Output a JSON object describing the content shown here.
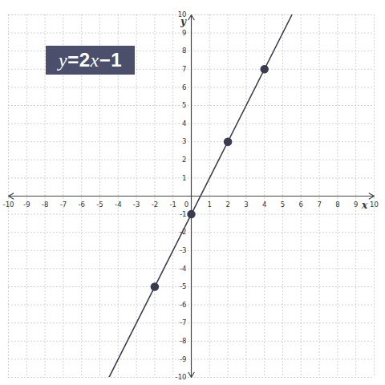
{
  "chart_data": {
    "type": "line",
    "title": "y=2x−1",
    "x_label": "x",
    "y_label": "y",
    "series": [
      {
        "type": "line",
        "color": "#3b3b4f",
        "x": [
          -4.5,
          5.5
        ],
        "values": [
          -10,
          10
        ]
      },
      {
        "type": "scatter",
        "marker": "circle",
        "color": "#3b3b4f",
        "x": [
          -2,
          0,
          2,
          4
        ],
        "values": [
          -5,
          -1,
          3,
          7
        ]
      }
    ],
    "xlim": [
      -10,
      10
    ],
    "ylim": [
      -10,
      10
    ],
    "xticks": [
      -10,
      -9,
      -8,
      -7,
      -6,
      -5,
      -4,
      -3,
      -2,
      -1,
      0,
      1,
      2,
      3,
      4,
      5,
      6,
      7,
      8,
      9,
      10
    ],
    "yticks": [
      -10,
      -9,
      -8,
      -7,
      -6,
      -5,
      -4,
      -3,
      -2,
      -1,
      1,
      2,
      3,
      4,
      5,
      6,
      7,
      8,
      9,
      10
    ],
    "grid": true
  }
}
